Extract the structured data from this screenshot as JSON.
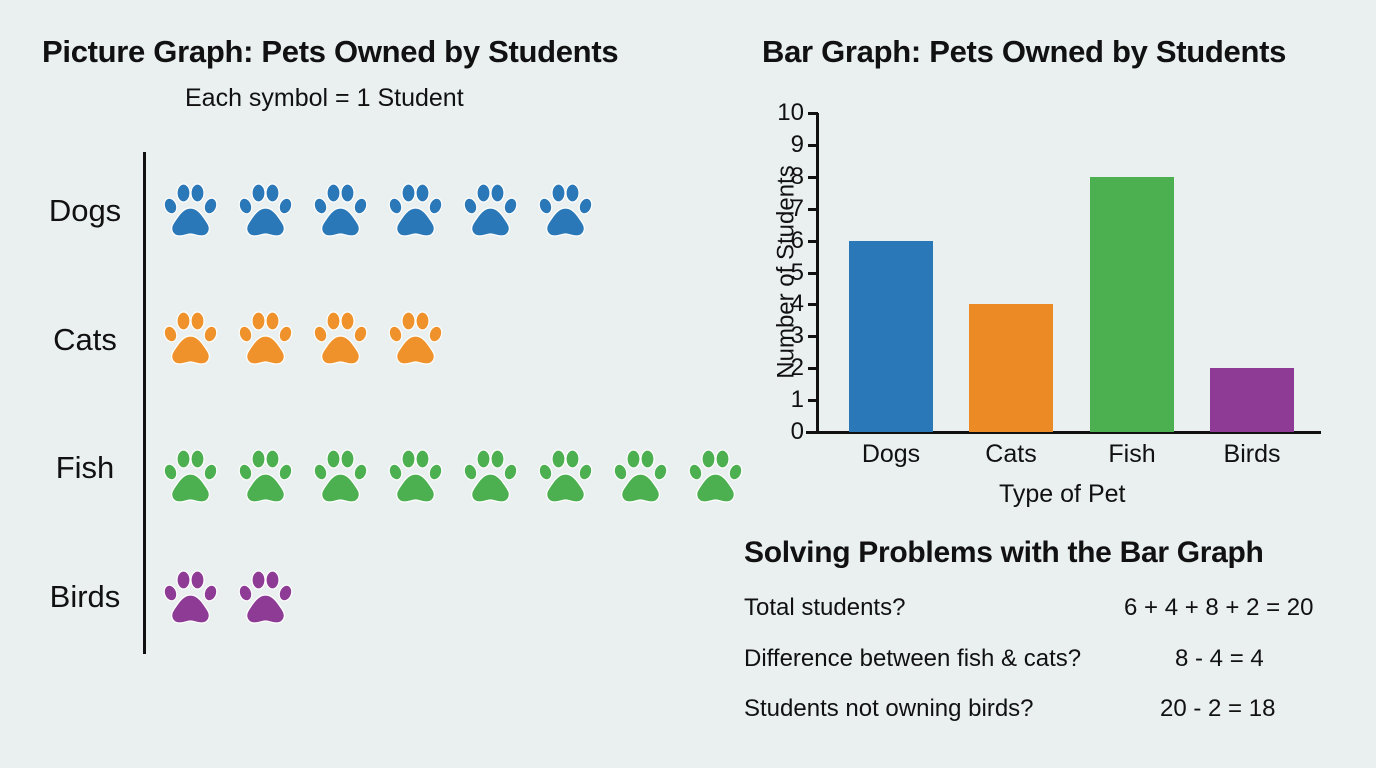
{
  "picture_graph": {
    "title": "Picture Graph: Pets Owned by Students",
    "key": "Each symbol = 1 Student",
    "symbol_icon": "paw-print-icon",
    "rows": [
      {
        "label": "Dogs",
        "count": 6,
        "color": "#2a78b8"
      },
      {
        "label": "Cats",
        "count": 4,
        "color": "#f0922c"
      },
      {
        "label": "Fish",
        "count": 8,
        "color": "#4caf50"
      },
      {
        "label": "Birds",
        "count": 2,
        "color": "#8e3b96"
      }
    ]
  },
  "bar_graph": {
    "title": "Bar Graph: Pets Owned by Students",
    "ylabel": "Number of Students",
    "xlabel": "Type of Pet",
    "yticks": [
      "0",
      "1",
      "2",
      "3",
      "4",
      "5",
      "6",
      "7",
      "8",
      "9",
      "10"
    ]
  },
  "chart_data": [
    {
      "type": "table",
      "title": "Picture Graph: Pets Owned by Students",
      "subtitle": "Each symbol = 1 Student",
      "categories": [
        "Dogs",
        "Cats",
        "Fish",
        "Birds"
      ],
      "values": [
        6,
        4,
        8,
        2
      ],
      "symbol": "paw print"
    },
    {
      "type": "bar",
      "title": "Bar Graph: Pets Owned by Students",
      "categories": [
        "Dogs",
        "Cats",
        "Fish",
        "Birds"
      ],
      "values": [
        6,
        4,
        8,
        2
      ],
      "colors": [
        "#2a78b8",
        "#ec8a26",
        "#4caf50",
        "#8e3b96"
      ],
      "xlabel": "Type of Pet",
      "ylabel": "Number of Students",
      "ylim": [
        0,
        10
      ],
      "yticks": [
        0,
        1,
        2,
        3,
        4,
        5,
        6,
        7,
        8,
        9,
        10
      ],
      "grid": false,
      "legend": "none"
    }
  ],
  "problems": {
    "title": "Solving Problems with the Bar Graph",
    "items": [
      {
        "question": "Total students?",
        "answer": "6 + 4 + 8 + 2 = 20"
      },
      {
        "question": "Difference between fish & cats?",
        "answer": "8 - 4 = 4"
      },
      {
        "question": "Students not owning birds?",
        "answer": "20 - 2 = 18"
      }
    ]
  }
}
